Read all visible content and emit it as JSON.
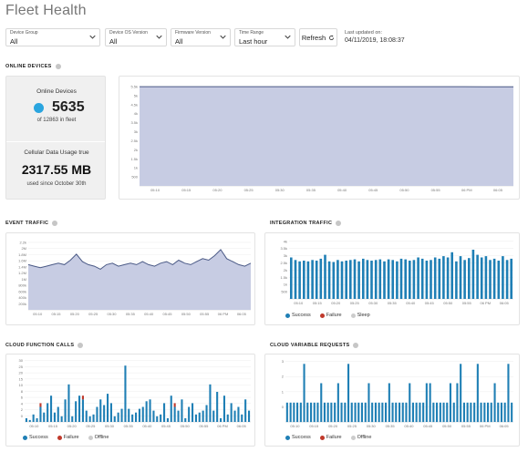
{
  "page": {
    "title": "Fleet Health"
  },
  "filters": [
    {
      "label": "Device Group",
      "value": "All"
    },
    {
      "label": "Device OS Version",
      "value": "All"
    },
    {
      "label": "Firmware Version",
      "value": "All"
    },
    {
      "label": "Time Range",
      "value": "Last hour"
    }
  ],
  "refresh": {
    "label": "Refresh"
  },
  "last_updated": {
    "label": "Last updated on:",
    "value": "04/11/2019, 18:08:37"
  },
  "sections": {
    "online_devices": "ONLINE DEVICES",
    "event_traffic": "EVENT TRAFFIC",
    "integration_traffic": "INTEGRATION TRAFFIC",
    "cloud_function_calls": "CLOUD FUNCTION CALLS",
    "cloud_variable_requests": "CLOUD VARIABLE REQUESTS"
  },
  "stats": {
    "online_label": "Online Devices",
    "online_value": "5635",
    "online_sub": "of 12863 in fleet",
    "cellular_label": "Cellular Data Usage true",
    "cellular_value": "2317.55 MB",
    "cellular_sub": "used since October 30th"
  },
  "colors": {
    "accent": "#2aa5df",
    "bar": "#1f7fb5",
    "failure": "#c0392b",
    "area_fill": "#c7cce3",
    "area_line": "#4b5a86",
    "offline": "#cccccc"
  },
  "legends": {
    "integration": [
      "Success",
      "Failure",
      "Sleep"
    ],
    "functions": [
      "Success",
      "Failure",
      "Offline"
    ],
    "variables": [
      "Success",
      "Failure",
      "Offline"
    ]
  },
  "chart_data": [
    {
      "id": "online_devices",
      "type": "area",
      "x_ticks": [
        "05:10",
        "05:15",
        "05:20",
        "05:25",
        "05:30",
        "05:35",
        "05:40",
        "05:45",
        "05:50",
        "05:55",
        "06 PM",
        "06:05"
      ],
      "y_ticks": [
        "500",
        "1k",
        "1.5k",
        "2k",
        "2.5k",
        "3k",
        "3.5k",
        "4k",
        "4.5k",
        "5k",
        "5.5k"
      ],
      "ylim": [
        0,
        5800
      ],
      "values": [
        5640,
        5642,
        5640,
        5638,
        5641,
        5640,
        5639,
        5637,
        5640,
        5641,
        5640,
        5638,
        5636,
        5635
      ]
    },
    {
      "id": "event_traffic",
      "type": "area",
      "x_ticks": [
        "05:10",
        "05:15",
        "05:20",
        "05:25",
        "05:30",
        "05:35",
        "05:40",
        "05:45",
        "05:50",
        "05:55",
        "06 PM",
        "06:05"
      ],
      "y_ticks": [
        "200k",
        "400k",
        "600k",
        "800k",
        "1M",
        "1.2M",
        "1.4M",
        "1.6M",
        "1.8M",
        "2M",
        "2.2k"
      ],
      "ylim": [
        0,
        2300000
      ],
      "values": [
        1500000,
        1450000,
        1400000,
        1450000,
        1500000,
        1550000,
        1500000,
        1650000,
        1850000,
        1600000,
        1500000,
        1450000,
        1350000,
        1500000,
        1550000,
        1450000,
        1500000,
        1550000,
        1500000,
        1600000,
        1500000,
        1450000,
        1550000,
        1600000,
        1500000,
        1650000,
        1550000,
        1500000,
        1600000,
        1700000,
        1650000,
        1800000,
        2000000,
        1700000,
        1600000,
        1500000,
        1450000,
        1550000
      ]
    },
    {
      "id": "integration_traffic",
      "type": "bar",
      "x_ticks": [
        "05:10",
        "05:15",
        "05:20",
        "05:25",
        "05:30",
        "05:35",
        "05:40",
        "05:45",
        "05:50",
        "05:55",
        "06 PM",
        "06:05"
      ],
      "y_ticks": [
        "500",
        "1k",
        "1.5k",
        "2k",
        "2.5k",
        "3k",
        "3.5k",
        "4k"
      ],
      "ylim": [
        0,
        4500
      ],
      "series": [
        {
          "name": "Success",
          "values": [
            3200,
            3000,
            2900,
            2950,
            2900,
            3000,
            2950,
            3100,
            3400,
            2900,
            2850,
            3000,
            2900,
            2950,
            3000,
            3050,
            2900,
            3100,
            3000,
            2950,
            3000,
            3050,
            2900,
            3050,
            3000,
            2900,
            3100,
            3050,
            2950,
            3000,
            3200,
            3100,
            2950,
            3000,
            3200,
            3100,
            3300,
            3200,
            3600,
            2900,
            3300,
            3000,
            3150,
            3800,
            3400,
            3200,
            3300,
            3000,
            3100,
            2950,
            3300,
            3000,
            3100
          ]
        }
      ]
    },
    {
      "id": "cloud_function_calls",
      "type": "bar",
      "x_ticks": [
        "05:10",
        "05:15",
        "05:20",
        "05:25",
        "05:30",
        "05:35",
        "05:40",
        "05:45",
        "05:50",
        "05:55",
        "06 PM",
        "06:05"
      ],
      "y_ticks": [
        "0",
        "2",
        "4",
        "6",
        "8",
        "10",
        "15",
        "20",
        "25",
        "30"
      ],
      "ylim": [
        0,
        33
      ],
      "series": [
        {
          "name": "Success",
          "values": [
            2,
            1,
            4,
            2,
            8,
            5,
            10,
            14,
            5,
            8,
            3,
            12,
            20,
            3,
            11,
            14,
            12,
            6,
            3,
            4,
            8,
            12,
            9,
            15,
            10,
            3,
            5,
            7,
            30,
            7,
            4,
            5,
            7,
            8,
            11,
            12,
            6,
            3,
            4,
            10,
            2,
            14,
            8,
            6,
            12,
            2,
            8,
            10,
            4,
            5,
            6,
            9,
            20,
            6,
            16,
            2,
            14,
            4,
            10,
            6,
            8,
            4,
            12,
            6
          ]
        },
        {
          "name": "Failure",
          "values": [
            0,
            0,
            0,
            0,
            2,
            0,
            0,
            0,
            0,
            0,
            0,
            0,
            0,
            0,
            0,
            0,
            2,
            0,
            0,
            0,
            0,
            0,
            0,
            0,
            0,
            0,
            0,
            0,
            0,
            0,
            0,
            0,
            0,
            0,
            0,
            0,
            0,
            0,
            0,
            0,
            0,
            0,
            2,
            0,
            0,
            0,
            0,
            0,
            0,
            0,
            0,
            0,
            0,
            0,
            0,
            0,
            0,
            0,
            0,
            0,
            0,
            0,
            0,
            0
          ]
        }
      ]
    },
    {
      "id": "cloud_variable_requests",
      "type": "bar",
      "x_ticks": [
        "05:10",
        "05:15",
        "05:20",
        "05:25",
        "05:30",
        "05:35",
        "05:40",
        "05:45",
        "05:50",
        "05:55",
        "06 PM",
        "06:05"
      ],
      "y_ticks": [
        "0",
        "1",
        "2",
        "3"
      ],
      "ylim": [
        0,
        3.2
      ],
      "series": [
        {
          "name": "Success",
          "values": [
            1,
            1,
            1,
            1,
            1,
            3,
            1,
            1,
            1,
            1,
            2,
            1,
            1,
            1,
            1,
            2,
            1,
            1,
            3,
            1,
            1,
            1,
            1,
            1,
            2,
            1,
            1,
            1,
            1,
            1,
            2,
            1,
            1,
            1,
            1,
            1,
            2,
            1,
            1,
            1,
            1,
            2,
            2,
            1,
            1,
            1,
            1,
            1,
            2,
            1,
            2,
            3,
            1,
            1,
            1,
            1,
            3,
            1,
            1,
            1,
            1,
            2,
            1,
            1,
            1,
            3,
            1
          ]
        }
      ]
    }
  ]
}
